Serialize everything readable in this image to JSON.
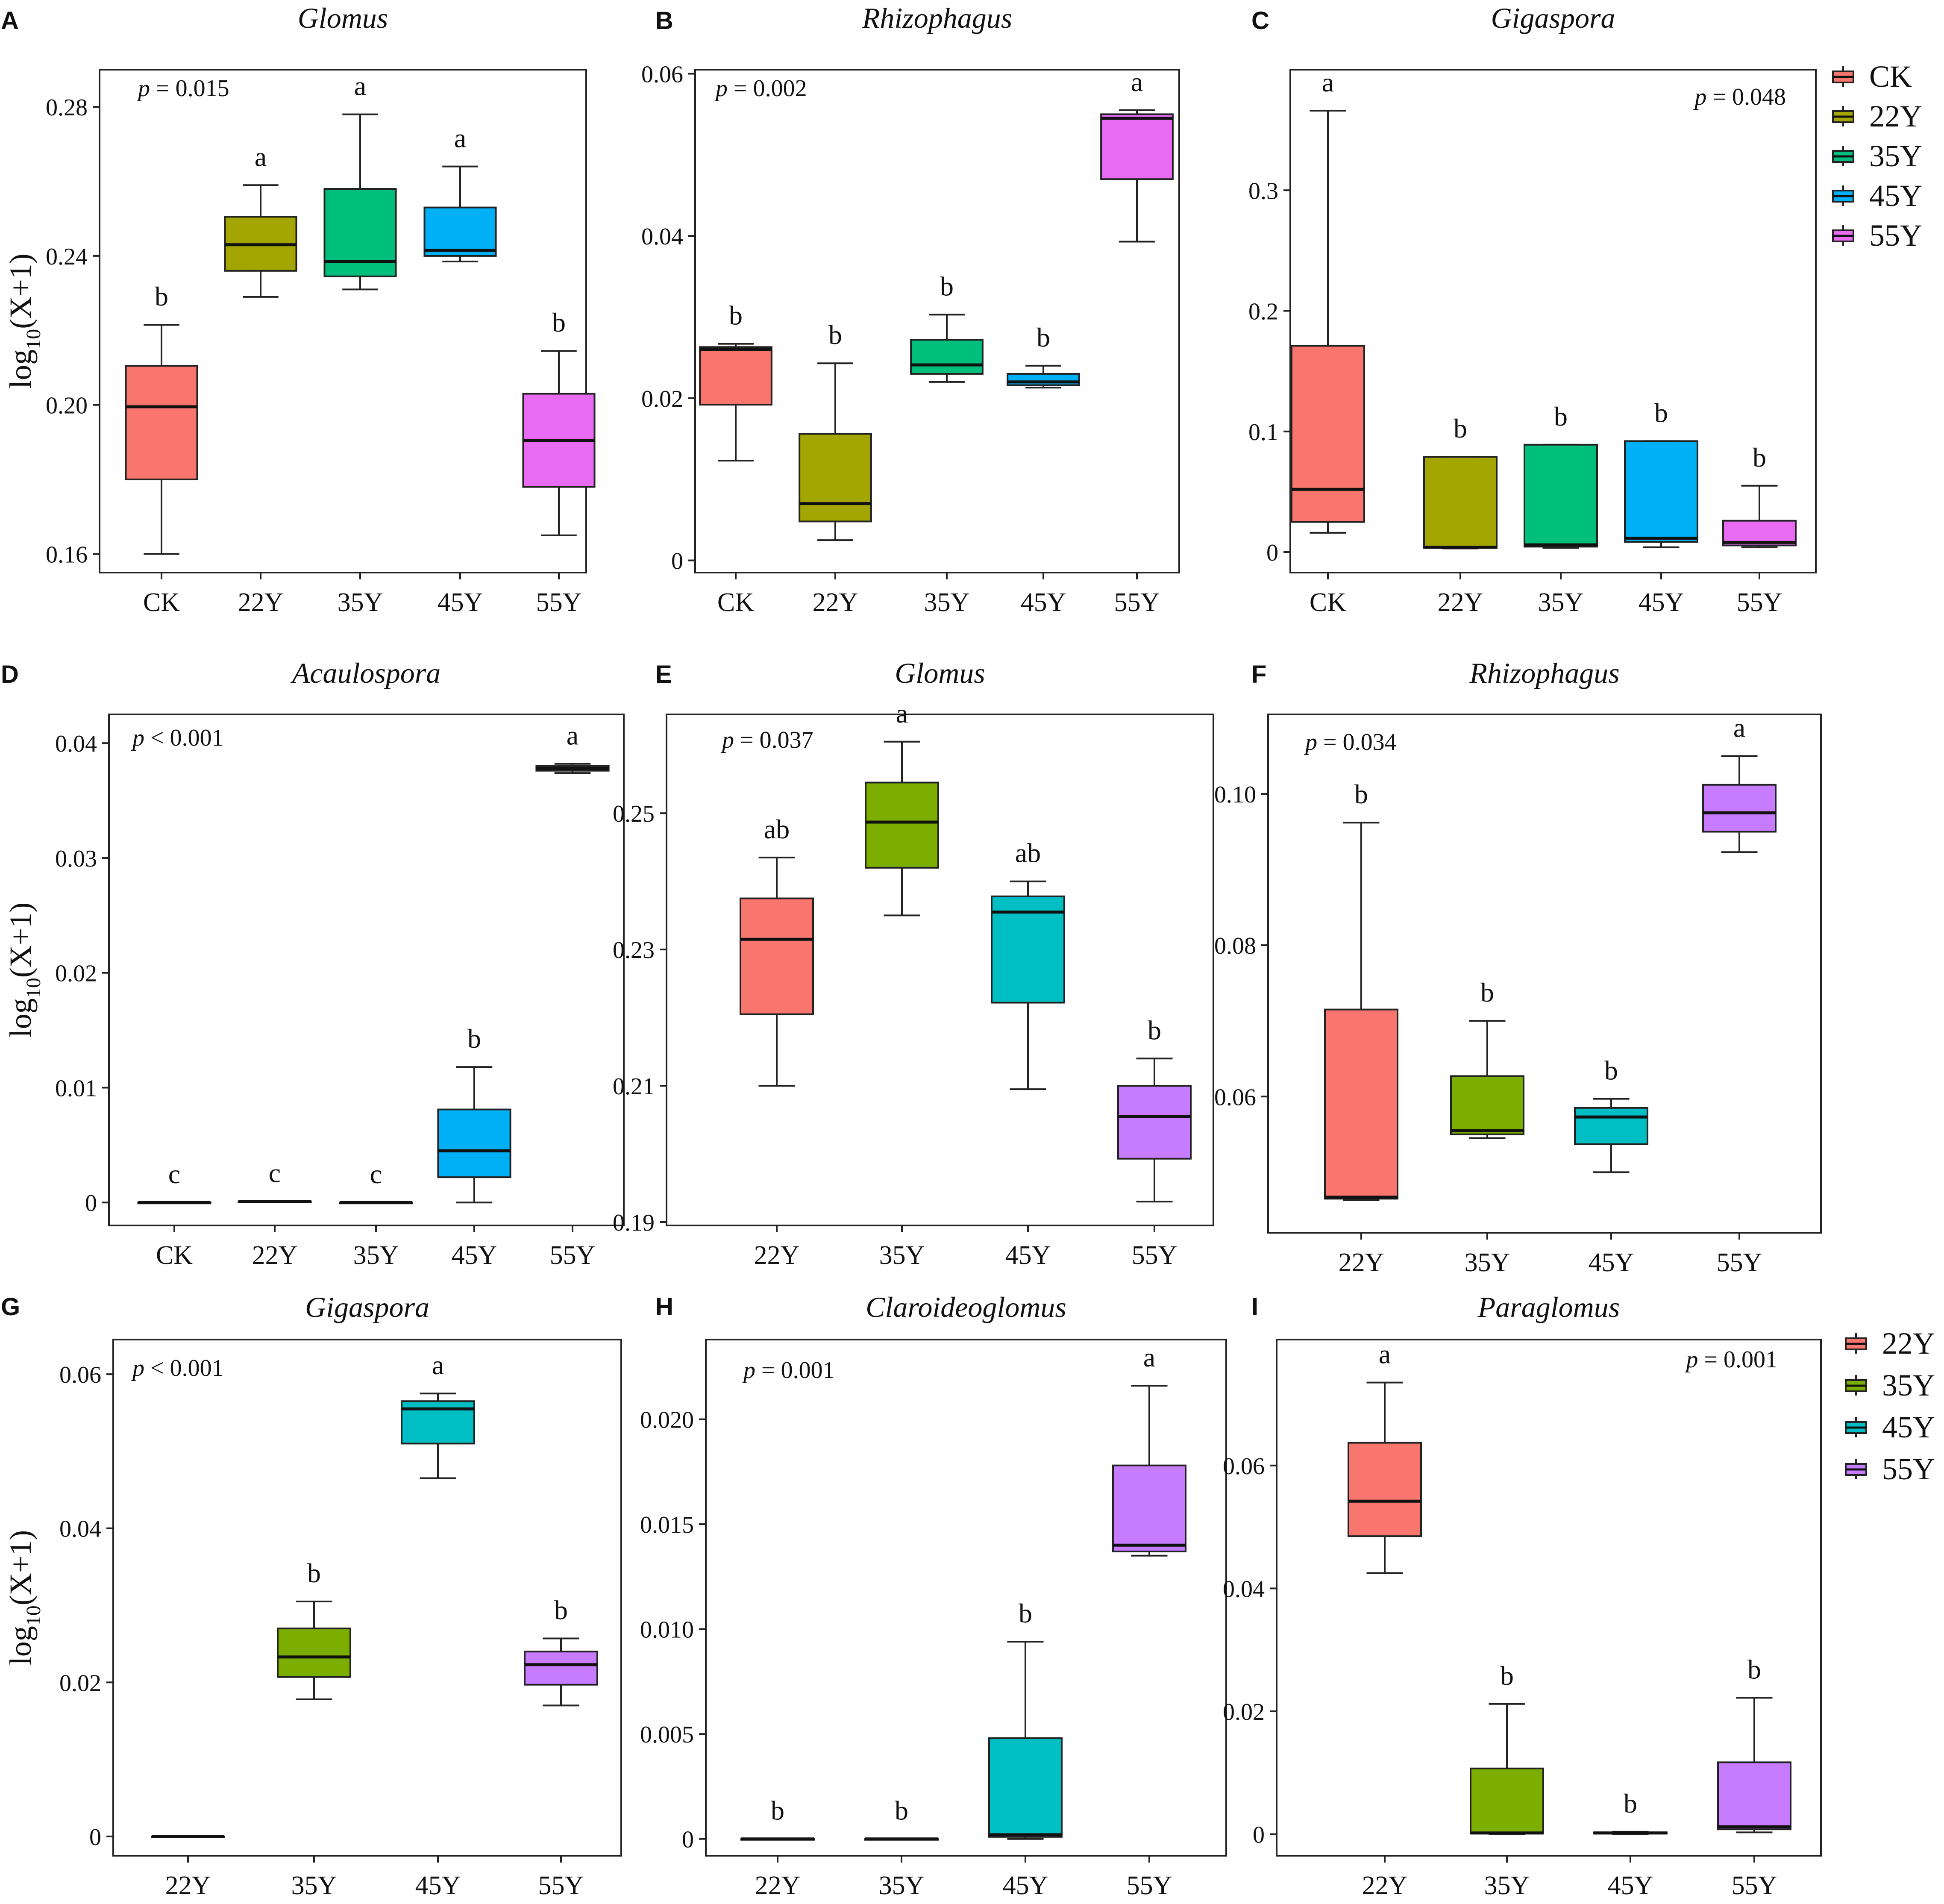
{
  "figure": {
    "y_axis_label_main": "log",
    "y_axis_label_sub": "10",
    "y_axis_label_tail": "(X+1)"
  },
  "colors": {
    "CK": "#F8766D",
    "22Y_top": "#A3A500",
    "35Y_top": "#00BF7D",
    "45Y_top": "#00B0F6",
    "55Y_top": "#E76BF3",
    "22Y_bottom": "#F8766D",
    "35Y_bottom": "#7CAE00",
    "45Y_bottom": "#00BFC4",
    "55Y_bottom": "#C77CFF"
  },
  "legends": [
    {
      "id": "legend-top",
      "items": [
        {
          "label": "CK",
          "color": "#F8766D"
        },
        {
          "label": "22Y",
          "color": "#A3A500"
        },
        {
          "label": "35Y",
          "color": "#00BF7D"
        },
        {
          "label": "45Y",
          "color": "#00B0F6"
        },
        {
          "label": "55Y",
          "color": "#E76BF3"
        }
      ]
    },
    {
      "id": "legend-bottom",
      "items": [
        {
          "label": "22Y",
          "color": "#F8766D"
        },
        {
          "label": "35Y",
          "color": "#7CAE00"
        },
        {
          "label": "45Y",
          "color": "#00BFC4"
        },
        {
          "label": "55Y",
          "color": "#C77CFF"
        }
      ]
    }
  ],
  "chart_data": [
    {
      "panel": "A",
      "type": "box",
      "title": "Glomus",
      "p_label": "p",
      "p_value": "= 0.015",
      "ylabel": "log10(X+1)",
      "ylim": [
        0.155,
        0.29
      ],
      "ticks": [
        "0.16",
        "0.20",
        "0.24",
        "0.28"
      ],
      "tick_values": [
        0.16,
        0.2,
        0.24,
        0.28
      ],
      "boxes": [
        {
          "category": "CK",
          "color": "#F8766D",
          "min": 0.16,
          "q1": 0.18,
          "median": 0.1995,
          "q3": 0.2105,
          "max": 0.2215,
          "letter": "b"
        },
        {
          "category": "22Y",
          "color": "#A3A500",
          "min": 0.229,
          "q1": 0.236,
          "median": 0.243,
          "q3": 0.2505,
          "max": 0.259,
          "letter": "a"
        },
        {
          "category": "35Y",
          "color": "#00BF7D",
          "min": 0.231,
          "q1": 0.2345,
          "median": 0.2385,
          "q3": 0.258,
          "max": 0.278,
          "letter": "a"
        },
        {
          "category": "45Y",
          "color": "#00B0F6",
          "min": 0.2385,
          "q1": 0.24,
          "median": 0.2415,
          "q3": 0.253,
          "max": 0.264,
          "letter": "a"
        },
        {
          "category": "55Y",
          "color": "#E76BF3",
          "min": 0.165,
          "q1": 0.178,
          "median": 0.1905,
          "q3": 0.203,
          "max": 0.2145,
          "letter": "b"
        }
      ]
    },
    {
      "panel": "B",
      "type": "box",
      "title": "Rhizophagus",
      "p_label": "p",
      "p_value": "= 0.002",
      "ylabel": "",
      "ylim": [
        -0.0015,
        0.0605
      ],
      "ticks": [
        "0",
        "0.02",
        "0.04",
        "0.06"
      ],
      "tick_values": [
        0,
        0.02,
        0.04,
        0.06
      ],
      "boxes": [
        {
          "category": "CK",
          "color": "#F8766D",
          "min": 0.0123,
          "q1": 0.0192,
          "median": 0.026,
          "q3": 0.0263,
          "max": 0.0267,
          "letter": "b"
        },
        {
          "category": "22Y",
          "color": "#A3A500",
          "min": 0.0025,
          "q1": 0.0048,
          "median": 0.007,
          "q3": 0.0156,
          "max": 0.0243,
          "letter": "b"
        },
        {
          "category": "35Y",
          "color": "#00BF7D",
          "min": 0.022,
          "q1": 0.023,
          "median": 0.0241,
          "q3": 0.0272,
          "max": 0.0303,
          "letter": "b"
        },
        {
          "category": "45Y",
          "color": "#00B0F6",
          "min": 0.0213,
          "q1": 0.0216,
          "median": 0.022,
          "q3": 0.023,
          "max": 0.024,
          "letter": "b"
        },
        {
          "category": "55Y",
          "color": "#E76BF3",
          "min": 0.0393,
          "q1": 0.047,
          "median": 0.0545,
          "q3": 0.055,
          "max": 0.0555,
          "letter": "a"
        }
      ]
    },
    {
      "panel": "C",
      "type": "box",
      "title": "Gigaspora",
      "p_label": "p",
      "p_value": "= 0.048",
      "ylabel": "",
      "ylim": [
        -0.017,
        0.4
      ],
      "ticks": [
        "0",
        "0.1",
        "0.2",
        "0.3"
      ],
      "tick_values": [
        0,
        0.1,
        0.2,
        0.3
      ],
      "boxes": [
        {
          "category": "CK",
          "color": "#F8766D",
          "min": 0.016,
          "q1": 0.025,
          "median": 0.052,
          "q3": 0.171,
          "max": 0.366,
          "letter": "a"
        },
        {
          "category": "22Y",
          "color": "#A3A500",
          "min": 0.003,
          "q1": 0.0035,
          "median": 0.004,
          "q3": 0.079,
          "max": 0.079,
          "letter": "b"
        },
        {
          "category": "35Y",
          "color": "#00BF7D",
          "min": 0.0035,
          "q1": 0.0045,
          "median": 0.006,
          "q3": 0.089,
          "max": 0.089,
          "letter": "b"
        },
        {
          "category": "45Y",
          "color": "#00B0F6",
          "min": 0.004,
          "q1": 0.0085,
          "median": 0.0115,
          "q3": 0.092,
          "max": 0.092,
          "letter": "b"
        },
        {
          "category": "55Y",
          "color": "#E76BF3",
          "min": 0.004,
          "q1": 0.0055,
          "median": 0.008,
          "q3": 0.026,
          "max": 0.055,
          "letter": "b"
        }
      ]
    },
    {
      "panel": "D",
      "type": "box",
      "title": "Acaulospora",
      "p_label": "p",
      "p_value": "< 0.001",
      "ylabel": "log10(X+1)",
      "ylim": [
        -0.002,
        0.0425
      ],
      "ticks": [
        "0",
        "0.01",
        "0.02",
        "0.03",
        "0.04"
      ],
      "tick_values": [
        0,
        0.01,
        0.02,
        0.03,
        0.04
      ],
      "boxes": [
        {
          "category": "CK",
          "color": "#F8766D",
          "min": 0,
          "q1": 0,
          "median": 0,
          "q3": 0,
          "max": 0,
          "letter": "c"
        },
        {
          "category": "22Y",
          "color": "#A3A500",
          "min": 0.0001,
          "q1": 0.0001,
          "median": 0.0001,
          "q3": 0.0001,
          "max": 0.0001,
          "letter": "c"
        },
        {
          "category": "35Y",
          "color": "#00BF7D",
          "min": 0,
          "q1": 0,
          "median": 0,
          "q3": 0,
          "max": 0,
          "letter": "c"
        },
        {
          "category": "45Y",
          "color": "#00B0F6",
          "min": 0.0,
          "q1": 0.0022,
          "median": 0.0045,
          "q3": 0.0081,
          "max": 0.0118,
          "letter": "b"
        },
        {
          "category": "55Y",
          "color": "#E76BF3",
          "min": 0.0374,
          "q1": 0.0376,
          "median": 0.0378,
          "q3": 0.038,
          "max": 0.0382,
          "letter": "a"
        }
      ]
    },
    {
      "panel": "E",
      "type": "box",
      "title": "Glomus",
      "p_label": "p",
      "p_value": "= 0.037",
      "ylabel": "",
      "ylim": [
        0.1895,
        0.2645
      ],
      "ticks": [
        "0.19",
        "0.21",
        "0.23",
        "0.25"
      ],
      "tick_values": [
        0.19,
        0.21,
        0.23,
        0.25
      ],
      "boxes": [
        {
          "category": "22Y",
          "color": "#F8766D",
          "min": 0.21,
          "q1": 0.2205,
          "median": 0.2315,
          "q3": 0.2375,
          "max": 0.2435,
          "letter": "ab"
        },
        {
          "category": "35Y",
          "color": "#7CAE00",
          "min": 0.235,
          "q1": 0.242,
          "median": 0.2487,
          "q3": 0.2545,
          "max": 0.2605,
          "letter": "a"
        },
        {
          "category": "45Y",
          "color": "#00BFC4",
          "min": 0.2095,
          "q1": 0.2222,
          "median": 0.2355,
          "q3": 0.2378,
          "max": 0.24,
          "letter": "ab"
        },
        {
          "category": "55Y",
          "color": "#C77CFF",
          "min": 0.193,
          "q1": 0.1993,
          "median": 0.2055,
          "q3": 0.21,
          "max": 0.214,
          "letter": "b"
        }
      ]
    },
    {
      "panel": "F",
      "type": "box",
      "title": "Rhizophagus",
      "p_label": "p",
      "p_value": "= 0.034",
      "ylabel": "",
      "ylim": [
        0.042,
        0.1105
      ],
      "ticks": [
        "0.06",
        "0.08",
        "0.10"
      ],
      "tick_values": [
        0.06,
        0.08,
        0.1
      ],
      "boxes": [
        {
          "category": "22Y",
          "color": "#F8766D",
          "min": 0.0463,
          "q1": 0.0465,
          "median": 0.0467,
          "q3": 0.0715,
          "max": 0.0962,
          "letter": "b"
        },
        {
          "category": "35Y",
          "color": "#7CAE00",
          "min": 0.0545,
          "q1": 0.055,
          "median": 0.0555,
          "q3": 0.0627,
          "max": 0.07,
          "letter": "b"
        },
        {
          "category": "45Y",
          "color": "#00BFC4",
          "min": 0.05,
          "q1": 0.0537,
          "median": 0.0573,
          "q3": 0.0585,
          "max": 0.0597,
          "letter": "b"
        },
        {
          "category": "55Y",
          "color": "#C77CFF",
          "min": 0.0923,
          "q1": 0.095,
          "median": 0.0975,
          "q3": 0.1012,
          "max": 0.105,
          "letter": "a"
        }
      ]
    },
    {
      "panel": "G",
      "type": "box",
      "title": "Gigaspora",
      "p_label": "p",
      "p_value": "< 0.001",
      "ylabel": "log10(X+1)",
      "ylim": [
        -0.0025,
        0.0645
      ],
      "ticks": [
        "0",
        "0.02",
        "0.04",
        "0.06"
      ],
      "tick_values": [
        0,
        0.02,
        0.04,
        0.06
      ],
      "boxes": [
        {
          "category": "22Y",
          "color": "#F8766D",
          "min": 0,
          "q1": 0,
          "median": 0,
          "q3": 0,
          "max": 0,
          "letter": ""
        },
        {
          "category": "35Y",
          "color": "#7CAE00",
          "min": 0.0178,
          "q1": 0.0207,
          "median": 0.0233,
          "q3": 0.027,
          "max": 0.0305,
          "letter": "b"
        },
        {
          "category": "45Y",
          "color": "#00BFC4",
          "min": 0.0465,
          "q1": 0.051,
          "median": 0.0555,
          "q3": 0.0565,
          "max": 0.0575,
          "letter": "a"
        },
        {
          "category": "55Y",
          "color": "#C77CFF",
          "min": 0.017,
          "q1": 0.0197,
          "median": 0.0223,
          "q3": 0.024,
          "max": 0.0257,
          "letter": "b"
        }
      ]
    },
    {
      "panel": "H",
      "type": "box",
      "title": "Claroideoglomus",
      "p_label": "p",
      "p_value": "= 0.001",
      "ylabel": "",
      "ylim": [
        -0.0008,
        0.0238
      ],
      "ticks": [
        "0",
        "0.005",
        "0.010",
        "0.015",
        "0.020"
      ],
      "tick_values": [
        0,
        0.005,
        0.01,
        0.015,
        0.02
      ],
      "boxes": [
        {
          "category": "22Y",
          "color": "#F8766D",
          "min": 0,
          "q1": 0,
          "median": 0,
          "q3": 0,
          "max": 0,
          "letter": "b"
        },
        {
          "category": "35Y",
          "color": "#7CAE00",
          "min": 0,
          "q1": 0,
          "median": 0,
          "q3": 0,
          "max": 0,
          "letter": "b"
        },
        {
          "category": "45Y",
          "color": "#00BFC4",
          "min": 0.0,
          "q1": 0.0001,
          "median": 0.0002,
          "q3": 0.0048,
          "max": 0.0094,
          "letter": "b"
        },
        {
          "category": "55Y",
          "color": "#C77CFF",
          "min": 0.0135,
          "q1": 0.0137,
          "median": 0.014,
          "q3": 0.0178,
          "max": 0.0216,
          "letter": "a"
        }
      ]
    },
    {
      "panel": "I",
      "type": "box",
      "title": "Paraglomus",
      "p_label": "p",
      "p_value": "= 0.001",
      "ylabel": "",
      "ylim": [
        -0.0035,
        0.0805
      ],
      "ticks": [
        "0",
        "0.02",
        "0.04",
        "0.06"
      ],
      "tick_values": [
        0,
        0.02,
        0.04,
        0.06
      ],
      "boxes": [
        {
          "category": "22Y",
          "color": "#F8766D",
          "min": 0.0425,
          "q1": 0.0485,
          "median": 0.0542,
          "q3": 0.0637,
          "max": 0.0735,
          "letter": "a"
        },
        {
          "category": "35Y",
          "color": "#7CAE00",
          "min": 0.0,
          "q1": 0.0001,
          "median": 0.0002,
          "q3": 0.0107,
          "max": 0.0212,
          "letter": "b"
        },
        {
          "category": "45Y",
          "color": "#00BFC4",
          "min": 0.0,
          "q1": 0.0001,
          "median": 0.0002,
          "q3": 0.0003,
          "max": 0.0004,
          "letter": "b"
        },
        {
          "category": "55Y",
          "color": "#C77CFF",
          "min": 0.0003,
          "q1": 0.0008,
          "median": 0.0012,
          "q3": 0.0117,
          "max": 0.0222,
          "letter": "b"
        }
      ]
    }
  ]
}
